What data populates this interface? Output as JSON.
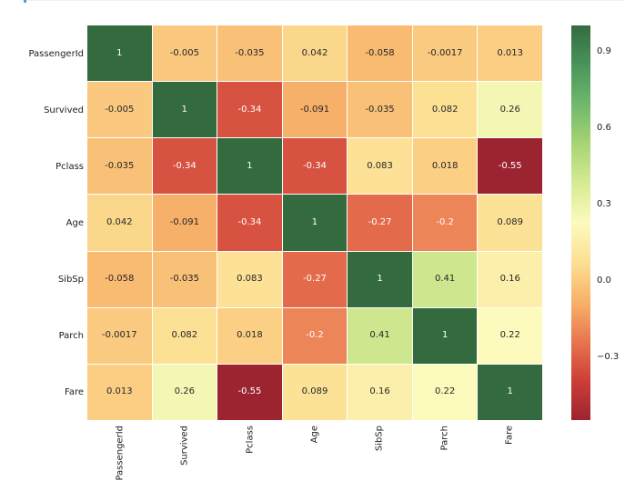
{
  "figure": {
    "background": "#ffffff",
    "artifacts": {
      "top_line_color": "#f0f0f0",
      "cursor_color": "#4a9fd8"
    }
  },
  "chart_data": {
    "type": "heatmap",
    "x_labels": [
      "PassengerId",
      "Survived",
      "Pclass",
      "Age",
      "SibSp",
      "Parch",
      "Fare"
    ],
    "y_labels": [
      "PassengerId",
      "Survived",
      "Pclass",
      "Age",
      "SibSp",
      "Parch",
      "Fare"
    ],
    "matrix": [
      [
        1,
        -0.005,
        -0.035,
        0.042,
        -0.058,
        -0.0017,
        0.013
      ],
      [
        -0.005,
        1,
        -0.34,
        -0.091,
        -0.035,
        0.082,
        0.26
      ],
      [
        -0.035,
        -0.34,
        1,
        -0.34,
        0.083,
        0.018,
        -0.55
      ],
      [
        0.042,
        -0.091,
        -0.34,
        1,
        -0.27,
        -0.2,
        0.089
      ],
      [
        -0.058,
        -0.035,
        0.083,
        -0.27,
        1,
        0.41,
        0.16
      ],
      [
        -0.0017,
        0.082,
        0.018,
        -0.2,
        0.41,
        1,
        0.22
      ],
      [
        0.013,
        0.26,
        -0.55,
        0.089,
        0.16,
        0.22,
        1
      ]
    ],
    "cell_labels": [
      [
        "1",
        "-0.005",
        "-0.035",
        "0.042",
        "-0.058",
        "-0.0017",
        "0.013"
      ],
      [
        "-0.005",
        "1",
        "-0.34",
        "-0.091",
        "-0.035",
        "0.082",
        "0.26"
      ],
      [
        "-0.035",
        "-0.34",
        "1",
        "-0.34",
        "0.083",
        "0.018",
        "-0.55"
      ],
      [
        "0.042",
        "-0.091",
        "-0.34",
        "1",
        "-0.27",
        "-0.2",
        "0.089"
      ],
      [
        "-0.058",
        "-0.035",
        "0.083",
        "-0.27",
        "1",
        "0.41",
        "0.16"
      ],
      [
        "-0.0017",
        "0.082",
        "0.018",
        "-0.2",
        "0.41",
        "1",
        "0.22"
      ],
      [
        "0.013",
        "0.26",
        "-0.55",
        "0.089",
        "0.16",
        "0.22",
        "1"
      ]
    ],
    "vmin": -0.55,
    "vmax": 1.0,
    "colormap": {
      "name": "RdYlGn",
      "stops": [
        "#9c2430",
        "#cd3e37",
        "#e87650",
        "#f8b26b",
        "#fcdf92",
        "#fcfbbd",
        "#d7ea94",
        "#a8d474",
        "#70b86d",
        "#48945a",
        "#346b3e"
      ]
    },
    "grid_line_color": "#ffffff",
    "annotation_colors": {
      "dark": "#262626",
      "light": "#ffffff"
    },
    "colorbar": {
      "position": "right",
      "ticks": [
        {
          "value": 0.9,
          "label": "0.9"
        },
        {
          "value": 0.6,
          "label": "0.6"
        },
        {
          "value": 0.3,
          "label": "0.3"
        },
        {
          "value": 0.0,
          "label": "0.0"
        },
        {
          "value": -0.3,
          "label": "−0.3"
        }
      ]
    }
  }
}
